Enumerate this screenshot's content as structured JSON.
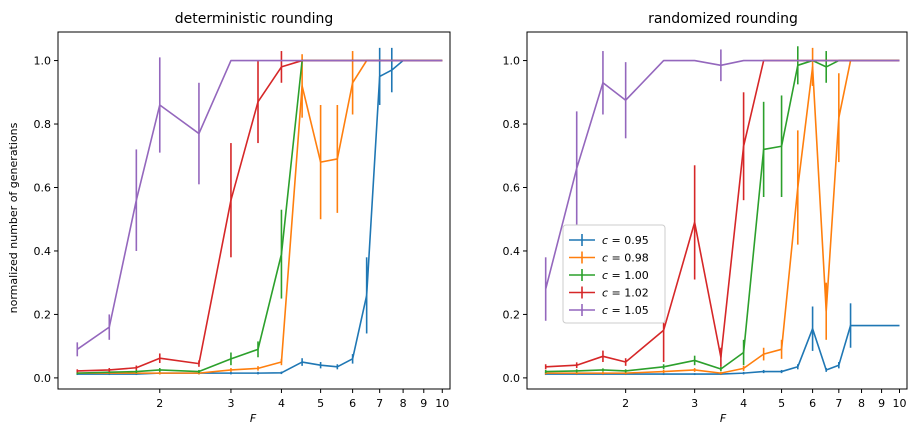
{
  "chart_data": [
    {
      "type": "line",
      "title": "deterministic rounding",
      "xlabel": "F",
      "ylabel": "normalized number of generations",
      "xscale": "log",
      "xticks": [
        2,
        3,
        4,
        5,
        6,
        7,
        8,
        9,
        10
      ],
      "xtick_labels": [
        "2",
        "3",
        "4",
        "5",
        "6",
        "7",
        "8",
        "9",
        "10"
      ],
      "yticks": [
        0.0,
        0.2,
        0.4,
        0.6,
        0.8,
        1.0
      ],
      "ytick_labels": [
        "0.0",
        "0.2",
        "0.4",
        "0.6",
        "0.8",
        "1.0"
      ],
      "xlim": [
        1.12,
        10.45
      ],
      "ylim": [
        -0.035,
        1.09
      ],
      "legend": null,
      "series": [
        {
          "label": "c = 0.95",
          "color": "#1f77b4",
          "x": [
            1.25,
            1.5,
            1.75,
            2.0,
            2.5,
            3.0,
            3.5,
            4.0,
            4.5,
            5.0,
            5.5,
            6.0,
            6.5,
            7.0,
            7.5,
            8.0,
            8.5,
            9.0,
            9.5,
            10.0
          ],
          "y": [
            0.012,
            0.012,
            0.012,
            0.015,
            0.015,
            0.015,
            0.015,
            0.016,
            0.05,
            0.04,
            0.035,
            0.06,
            0.26,
            0.95,
            0.97,
            1.0,
            1.0,
            1.0,
            1.0,
            1.0
          ],
          "err": [
            0.003,
            0.003,
            0.003,
            0.004,
            0.004,
            0.004,
            0.004,
            0.004,
            0.012,
            0.01,
            0.008,
            0.015,
            0.12,
            0.09,
            0.07,
            0.0,
            0.0,
            0.0,
            0.0,
            0.0
          ]
        },
        {
          "label": "c = 0.98",
          "color": "#ff7f0e",
          "x": [
            1.25,
            1.5,
            1.75,
            2.0,
            2.5,
            3.0,
            3.5,
            4.0,
            4.5,
            5.0,
            5.5,
            6.0,
            6.5,
            7.0,
            7.5,
            8.0,
            8.5,
            9.0,
            9.5,
            10.0
          ],
          "y": [
            0.015,
            0.015,
            0.015,
            0.015,
            0.015,
            0.025,
            0.03,
            0.05,
            0.92,
            0.68,
            0.69,
            0.93,
            1.0,
            1.0,
            1.0,
            1.0,
            1.0,
            1.0,
            1.0,
            1.0
          ],
          "err": [
            0.003,
            0.003,
            0.003,
            0.004,
            0.004,
            0.006,
            0.007,
            0.01,
            0.1,
            0.18,
            0.17,
            0.1,
            0.0,
            0.0,
            0.0,
            0.0,
            0.0,
            0.0,
            0.0,
            0.0
          ]
        },
        {
          "label": "c = 1.00",
          "color": "#2ca02c",
          "x": [
            1.25,
            1.5,
            1.75,
            2.0,
            2.5,
            3.0,
            3.5,
            4.0,
            4.5,
            5.0,
            5.5,
            6.0,
            6.5,
            7.0,
            7.5,
            8.0,
            8.5,
            9.0,
            9.5,
            10.0
          ],
          "y": [
            0.015,
            0.018,
            0.02,
            0.025,
            0.02,
            0.06,
            0.09,
            0.39,
            1.0,
            1.0,
            1.0,
            1.0,
            1.0,
            1.0,
            1.0,
            1.0,
            1.0,
            1.0,
            1.0,
            1.0
          ],
          "err": [
            0.004,
            0.004,
            0.005,
            0.006,
            0.005,
            0.02,
            0.025,
            0.14,
            0.0,
            0.0,
            0.0,
            0.0,
            0.0,
            0.0,
            0.0,
            0.0,
            0.0,
            0.0,
            0.0,
            0.0
          ]
        },
        {
          "label": "c = 1.02",
          "color": "#d62728",
          "x": [
            1.25,
            1.5,
            1.75,
            2.0,
            2.5,
            3.0,
            3.5,
            4.0,
            4.5,
            5.0,
            5.5,
            6.0,
            6.5,
            7.0,
            7.5,
            8.0,
            8.5,
            9.0,
            9.5,
            10.0
          ],
          "y": [
            0.022,
            0.025,
            0.032,
            0.062,
            0.045,
            0.56,
            0.87,
            0.98,
            1.0,
            1.0,
            1.0,
            1.0,
            1.0,
            1.0,
            1.0,
            1.0,
            1.0,
            1.0,
            1.0,
            1.0
          ],
          "err": [
            0.005,
            0.006,
            0.007,
            0.015,
            0.01,
            0.18,
            0.13,
            0.05,
            0.0,
            0.0,
            0.0,
            0.0,
            0.0,
            0.0,
            0.0,
            0.0,
            0.0,
            0.0,
            0.0,
            0.0
          ]
        },
        {
          "label": "c = 1.05",
          "color": "#9467bd",
          "x": [
            1.25,
            1.5,
            1.75,
            2.0,
            2.5,
            3.0,
            3.5,
            4.0,
            4.5,
            5.0,
            5.5,
            6.0,
            6.5,
            7.0,
            7.5,
            8.0,
            8.5,
            9.0,
            9.5,
            10.0
          ],
          "y": [
            0.09,
            0.16,
            0.56,
            0.86,
            0.77,
            1.0,
            1.0,
            1.0,
            1.0,
            1.0,
            1.0,
            1.0,
            1.0,
            1.0,
            1.0,
            1.0,
            1.0,
            1.0,
            1.0,
            1.0
          ],
          "err": [
            0.022,
            0.04,
            0.16,
            0.15,
            0.16,
            0.0,
            0.0,
            0.0,
            0.0,
            0.0,
            0.0,
            0.0,
            0.0,
            0.0,
            0.0,
            0.0,
            0.0,
            0.0,
            0.0,
            0.0
          ]
        }
      ]
    },
    {
      "type": "line",
      "title": "randomized rounding",
      "xlabel": "F",
      "ylabel": "",
      "xscale": "log",
      "xticks": [
        2,
        3,
        4,
        5,
        6,
        7,
        8,
        9,
        10
      ],
      "xtick_labels": [
        "2",
        "3",
        "4",
        "5",
        "6",
        "7",
        "8",
        "9",
        "10"
      ],
      "yticks": [
        0.0,
        0.2,
        0.4,
        0.6,
        0.8,
        1.0
      ],
      "ytick_labels": [
        "0.0",
        "0.2",
        "0.4",
        "0.6",
        "0.8",
        "1.0"
      ],
      "xlim": [
        1.12,
        10.45
      ],
      "ylim": [
        -0.035,
        1.09
      ],
      "legend": "center-left",
      "series": [
        {
          "label": "c = 0.95",
          "color": "#1f77b4",
          "x": [
            1.25,
            1.5,
            1.75,
            2.0,
            2.5,
            3.0,
            3.5,
            4.0,
            4.5,
            5.0,
            5.5,
            6.0,
            6.5,
            7.0,
            7.5,
            8.0,
            8.5,
            9.0,
            9.5,
            10.0
          ],
          "y": [
            0.012,
            0.012,
            0.012,
            0.012,
            0.012,
            0.012,
            0.012,
            0.015,
            0.02,
            0.02,
            0.035,
            0.155,
            0.025,
            0.04,
            0.165,
            0.165,
            0.165,
            0.165,
            0.165,
            0.165
          ],
          "err": [
            0.003,
            0.003,
            0.003,
            0.003,
            0.003,
            0.003,
            0.003,
            0.004,
            0.005,
            0.005,
            0.008,
            0.07,
            0.006,
            0.01,
            0.07,
            0.0,
            0.0,
            0.0,
            0.0,
            0.0
          ]
        },
        {
          "label": "c = 0.98",
          "color": "#ff7f0e",
          "x": [
            1.25,
            1.5,
            1.75,
            2.0,
            2.5,
            3.0,
            3.5,
            4.0,
            4.5,
            5.0,
            5.5,
            6.0,
            6.5,
            7.0,
            7.5,
            8.0,
            8.5,
            9.0,
            9.5,
            10.0
          ],
          "y": [
            0.015,
            0.015,
            0.015,
            0.015,
            0.02,
            0.025,
            0.015,
            0.03,
            0.075,
            0.09,
            0.6,
            0.98,
            0.21,
            0.82,
            1.0,
            1.0,
            1.0,
            1.0,
            1.0,
            1.0
          ],
          "err": [
            0.004,
            0.004,
            0.004,
            0.004,
            0.005,
            0.006,
            0.004,
            0.008,
            0.02,
            0.03,
            0.18,
            0.06,
            0.09,
            0.14,
            0.0,
            0.0,
            0.0,
            0.0,
            0.0,
            0.0
          ]
        },
        {
          "label": "c = 1.00",
          "color": "#2ca02c",
          "x": [
            1.25,
            1.5,
            1.75,
            2.0,
            2.5,
            3.0,
            3.5,
            4.0,
            4.5,
            5.0,
            5.5,
            6.0,
            6.5,
            7.0,
            7.5,
            8.0,
            8.5,
            9.0,
            9.5,
            10.0
          ],
          "y": [
            0.02,
            0.022,
            0.025,
            0.022,
            0.035,
            0.055,
            0.028,
            0.08,
            0.72,
            0.73,
            0.985,
            1.0,
            0.98,
            1.0,
            1.0,
            1.0,
            1.0,
            1.0,
            1.0,
            1.0
          ],
          "err": [
            0.005,
            0.005,
            0.005,
            0.005,
            0.008,
            0.015,
            0.007,
            0.04,
            0.15,
            0.16,
            0.06,
            0.0,
            0.05,
            0.0,
            0.0,
            0.0,
            0.0,
            0.0,
            0.0,
            0.0
          ]
        },
        {
          "label": "c = 1.02",
          "color": "#d62728",
          "x": [
            1.25,
            1.5,
            1.75,
            2.0,
            2.5,
            3.0,
            3.5,
            4.0,
            4.5,
            5.0,
            5.5,
            6.0,
            6.5,
            7.0,
            7.5,
            8.0,
            8.5,
            9.0,
            9.5,
            10.0
          ],
          "y": [
            0.035,
            0.04,
            0.068,
            0.05,
            0.15,
            0.49,
            0.065,
            0.73,
            1.0,
            1.0,
            1.0,
            1.0,
            1.0,
            1.0,
            1.0,
            1.0,
            1.0,
            1.0,
            1.0,
            1.0
          ],
          "err": [
            0.008,
            0.009,
            0.018,
            0.012,
            0.1,
            0.18,
            0.03,
            0.17,
            0.0,
            0.0,
            0.0,
            0.0,
            0.0,
            0.0,
            0.0,
            0.0,
            0.0,
            0.0,
            0.0,
            0.0
          ]
        },
        {
          "label": "c = 1.05",
          "color": "#9467bd",
          "x": [
            1.25,
            1.5,
            1.75,
            2.0,
            2.5,
            3.0,
            3.5,
            4.0,
            4.5,
            5.0,
            5.5,
            6.0,
            6.5,
            7.0,
            7.5,
            8.0,
            8.5,
            9.0,
            9.5,
            10.0
          ],
          "y": [
            0.28,
            0.66,
            0.93,
            0.875,
            1.0,
            1.0,
            0.985,
            1.0,
            1.0,
            1.0,
            1.0,
            1.0,
            1.0,
            1.0,
            1.0,
            1.0,
            1.0,
            1.0,
            1.0,
            1.0
          ],
          "err": [
            0.1,
            0.18,
            0.1,
            0.12,
            0.0,
            0.0,
            0.05,
            0.0,
            0.0,
            0.0,
            0.0,
            0.0,
            0.0,
            0.0,
            0.0,
            0.0,
            0.0,
            0.0,
            0.0,
            0.0
          ]
        }
      ]
    }
  ],
  "panels": [
    {
      "title": "deterministic rounding",
      "xlabel": "F",
      "ylabel": "normalized number of generations"
    },
    {
      "title": "randomized rounding",
      "xlabel": "F"
    }
  ],
  "legend": {
    "entries": [
      {
        "prefix": "c",
        "value": " = 0.95",
        "color": "#1f77b4"
      },
      {
        "prefix": "c",
        "value": " = 0.98",
        "color": "#ff7f0e"
      },
      {
        "prefix": "c",
        "value": " = 1.00",
        "color": "#2ca02c"
      },
      {
        "prefix": "c",
        "value": " = 1.02",
        "color": "#d62728"
      },
      {
        "prefix": "c",
        "value": " = 1.05",
        "color": "#9467bd"
      }
    ]
  }
}
